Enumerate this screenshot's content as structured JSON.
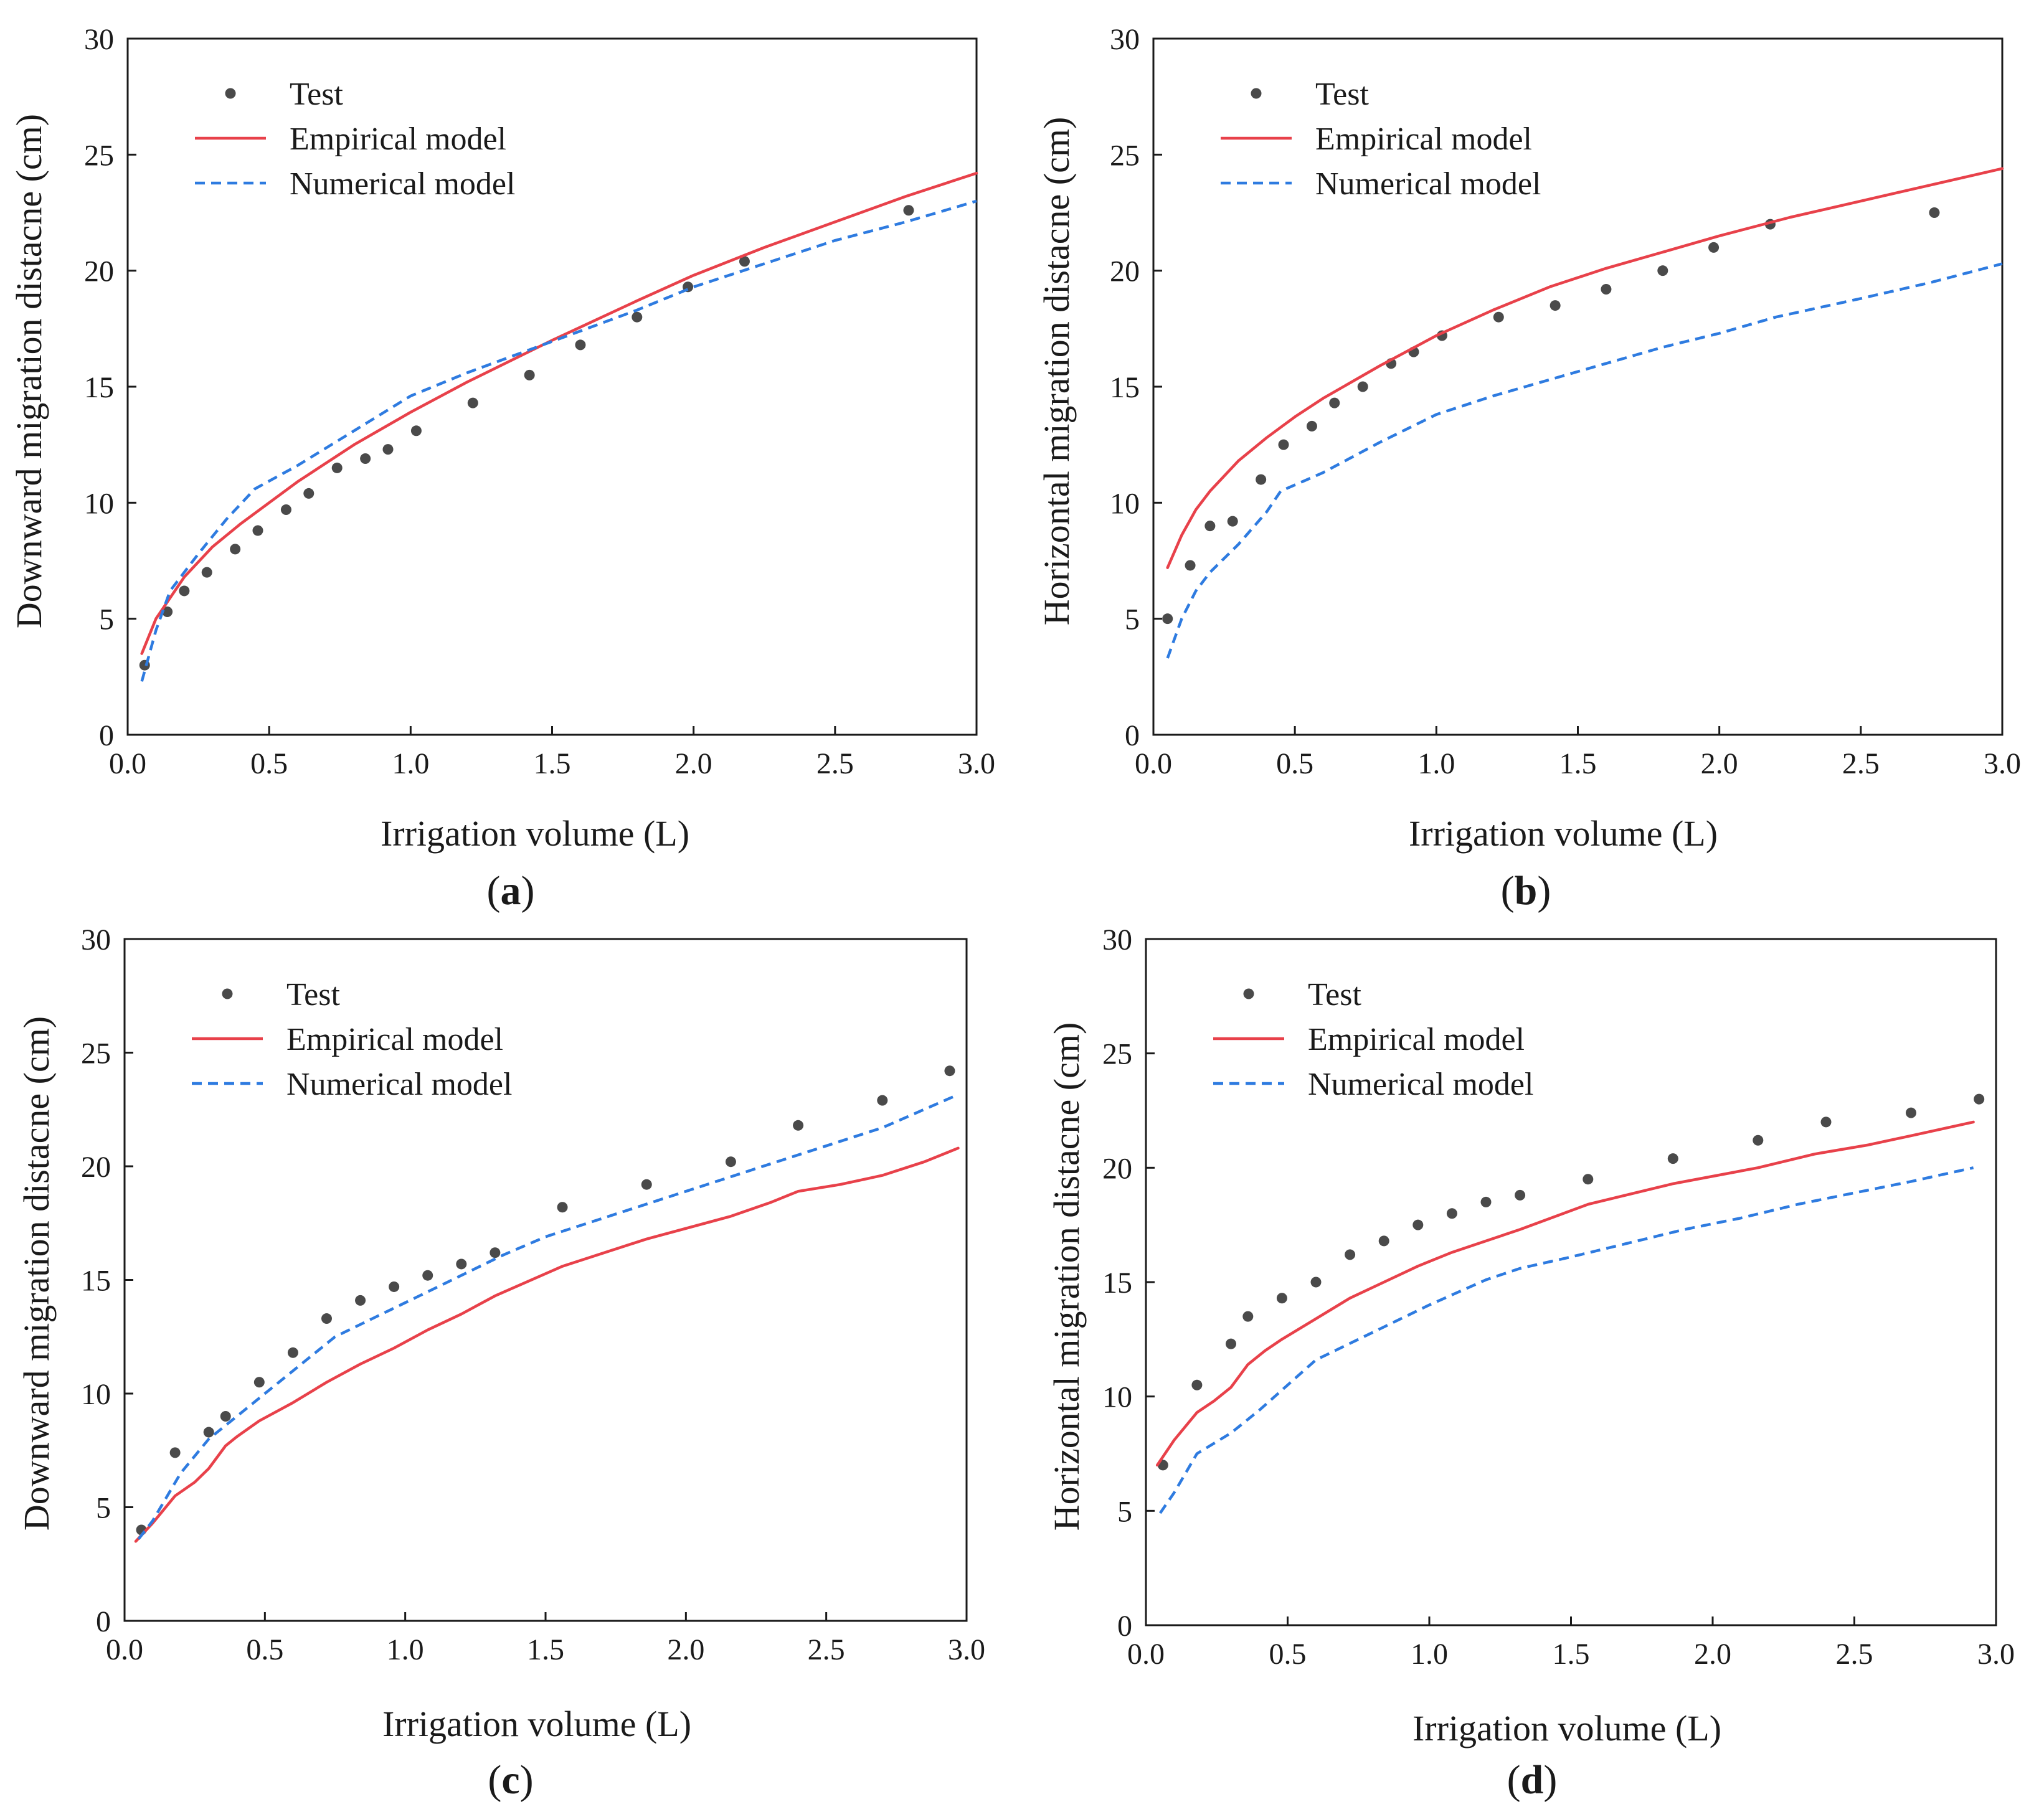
{
  "colors": {
    "test": "#4a4a4a",
    "empirical": "#e8414a",
    "numerical": "#2e7be0",
    "axis": "#1a1a1a"
  },
  "chart_data": [
    {
      "panel": "a",
      "type": "line",
      "xlabel": "Irrigation volume (L)",
      "ylabel": "Downward migration distacne (cm)",
      "xlim": [
        0,
        3.0
      ],
      "ylim": [
        0,
        30
      ],
      "xticks": [
        "0.0",
        "0.5",
        "1.0",
        "1.5",
        "2.0",
        "2.5",
        "3.0"
      ],
      "yticks": [
        "0",
        "5",
        "10",
        "15",
        "20",
        "25",
        "30"
      ],
      "legend": {
        "position": "top-left",
        "entries": [
          "Test",
          "Empirical model",
          "Numerical model"
        ]
      },
      "series": [
        {
          "name": "Test",
          "kind": "scatter",
          "x": [
            0.06,
            0.14,
            0.2,
            0.28,
            0.38,
            0.46,
            0.56,
            0.64,
            0.74,
            0.84,
            0.92,
            1.02,
            1.22,
            1.42,
            1.6,
            1.8,
            1.98,
            2.18,
            2.76
          ],
          "y": [
            3.0,
            5.3,
            6.2,
            7.0,
            8.0,
            8.8,
            9.7,
            10.4,
            11.5,
            11.9,
            12.3,
            13.1,
            14.3,
            15.5,
            16.8,
            18.0,
            19.3,
            20.4,
            22.6
          ]
        },
        {
          "name": "Empirical model",
          "kind": "line",
          "x": [
            0.05,
            0.1,
            0.2,
            0.3,
            0.4,
            0.5,
            0.6,
            0.8,
            1.0,
            1.2,
            1.5,
            1.8,
            2.0,
            2.25,
            2.5,
            2.75,
            3.0
          ],
          "y": [
            3.5,
            5.0,
            6.8,
            8.1,
            9.1,
            10.0,
            10.9,
            12.5,
            13.9,
            15.2,
            17.0,
            18.7,
            19.8,
            21.0,
            22.1,
            23.2,
            24.2
          ]
        },
        {
          "name": "Numerical model",
          "kind": "dashed",
          "x": [
            0.05,
            0.1,
            0.15,
            0.25,
            0.35,
            0.45,
            0.6,
            0.8,
            1.0,
            1.2,
            1.4,
            1.6,
            1.8,
            2.0,
            2.25,
            2.5,
            2.75,
            3.0
          ],
          "y": [
            2.3,
            4.5,
            6.2,
            7.8,
            9.3,
            10.6,
            11.6,
            13.1,
            14.6,
            15.6,
            16.5,
            17.4,
            18.3,
            19.3,
            20.3,
            21.3,
            22.1,
            23.0
          ]
        }
      ],
      "panel_label": "a"
    },
    {
      "panel": "b",
      "type": "line",
      "xlabel": "Irrigation volume (L)",
      "ylabel": "Horizontal migration distacne (cm)",
      "xlim": [
        0,
        3.0
      ],
      "ylim": [
        0,
        30
      ],
      "xticks": [
        "0.0",
        "0.5",
        "1.0",
        "1.5",
        "2.0",
        "2.5",
        "3.0"
      ],
      "yticks": [
        "0",
        "5",
        "10",
        "15",
        "20",
        "25",
        "30"
      ],
      "legend": {
        "position": "top-left",
        "entries": [
          "Test",
          "Empirical model",
          "Numerical model"
        ]
      },
      "series": [
        {
          "name": "Test",
          "kind": "scatter",
          "x": [
            0.05,
            0.13,
            0.2,
            0.28,
            0.38,
            0.46,
            0.56,
            0.64,
            0.74,
            0.84,
            0.92,
            1.02,
            1.22,
            1.42,
            1.6,
            1.8,
            1.98,
            2.18,
            2.76
          ],
          "y": [
            5.0,
            7.3,
            9.0,
            9.2,
            11.0,
            12.5,
            13.3,
            14.3,
            15.0,
            16.0,
            16.5,
            17.2,
            18.0,
            18.5,
            19.2,
            20.0,
            21.0,
            22.0,
            22.5
          ]
        },
        {
          "name": "Empirical model",
          "kind": "line",
          "x": [
            0.05,
            0.1,
            0.15,
            0.2,
            0.3,
            0.4,
            0.5,
            0.6,
            0.8,
            1.0,
            1.2,
            1.4,
            1.6,
            1.8,
            2.0,
            2.25,
            2.5,
            2.75,
            3.0
          ],
          "y": [
            7.2,
            8.6,
            9.7,
            10.5,
            11.8,
            12.8,
            13.7,
            14.5,
            15.9,
            17.2,
            18.3,
            19.3,
            20.1,
            20.8,
            21.5,
            22.3,
            23.0,
            23.7,
            24.4
          ]
        },
        {
          "name": "Numerical model",
          "kind": "dashed",
          "x": [
            0.05,
            0.1,
            0.15,
            0.2,
            0.3,
            0.4,
            0.45,
            0.6,
            0.8,
            1.0,
            1.2,
            1.4,
            1.6,
            1.8,
            2.0,
            2.2,
            2.5,
            2.75,
            3.0
          ],
          "y": [
            3.3,
            5.0,
            6.2,
            7.0,
            8.2,
            9.6,
            10.5,
            11.3,
            12.6,
            13.8,
            14.6,
            15.3,
            16.0,
            16.7,
            17.3,
            18.0,
            18.8,
            19.5,
            20.3
          ]
        }
      ],
      "panel_label": "b"
    },
    {
      "panel": "c",
      "type": "line",
      "xlabel": "Irrigation volume (L)",
      "ylabel": "Downward migration distacne (cm)",
      "xlim": [
        0,
        3.0
      ],
      "ylim": [
        0,
        30
      ],
      "xticks": [
        "0.0",
        "0.5",
        "1.0",
        "1.5",
        "2.0",
        "2.5",
        "3.0"
      ],
      "yticks": [
        "0",
        "5",
        "10",
        "15",
        "20",
        "25",
        "30"
      ],
      "legend": {
        "position": "top-left",
        "entries": [
          "Test",
          "Empirical model",
          "Numerical model"
        ]
      },
      "series": [
        {
          "name": "Test",
          "kind": "scatter",
          "x": [
            0.06,
            0.18,
            0.3,
            0.36,
            0.48,
            0.6,
            0.72,
            0.84,
            0.96,
            1.08,
            1.2,
            1.32,
            1.56,
            1.86,
            2.16,
            2.4,
            2.7,
            2.94
          ],
          "y": [
            4.0,
            7.4,
            8.3,
            9.0,
            10.5,
            11.8,
            13.3,
            14.1,
            14.7,
            15.2,
            15.7,
            16.2,
            18.2,
            19.2,
            20.2,
            21.8,
            22.9,
            24.2
          ]
        },
        {
          "name": "Empirical model",
          "kind": "line",
          "x": [
            0.04,
            0.1,
            0.18,
            0.25,
            0.3,
            0.36,
            0.4,
            0.48,
            0.6,
            0.72,
            0.84,
            0.96,
            1.08,
            1.2,
            1.32,
            1.56,
            1.86,
            2.16,
            2.3,
            2.4,
            2.55,
            2.7,
            2.85,
            2.97
          ],
          "y": [
            3.5,
            4.3,
            5.5,
            6.1,
            6.7,
            7.7,
            8.1,
            8.8,
            9.6,
            10.5,
            11.3,
            12.0,
            12.8,
            13.5,
            14.3,
            15.6,
            16.8,
            17.8,
            18.4,
            18.9,
            19.2,
            19.6,
            20.2,
            20.8
          ]
        },
        {
          "name": "Numerical model",
          "kind": "dashed",
          "x": [
            0.05,
            0.1,
            0.2,
            0.3,
            0.4,
            0.5,
            0.6,
            0.75,
            0.9,
            1.05,
            1.2,
            1.35,
            1.5,
            1.7,
            1.9,
            2.1,
            2.3,
            2.5,
            2.7,
            2.96
          ],
          "y": [
            3.6,
            4.4,
            6.5,
            8.0,
            9.0,
            10.0,
            11.0,
            12.5,
            13.4,
            14.3,
            15.2,
            16.1,
            16.9,
            17.7,
            18.5,
            19.3,
            20.1,
            20.9,
            21.7,
            23.1
          ]
        }
      ],
      "panel_label": "c"
    },
    {
      "panel": "d",
      "type": "line",
      "xlabel": "Irrigation volume (L)",
      "ylabel": "Horizontal migration distacne (cm)",
      "xlim": [
        0,
        3.0
      ],
      "ylim": [
        0,
        30
      ],
      "xticks": [
        "0.0",
        "0.5",
        "1.0",
        "1.5",
        "2.0",
        "2.5",
        "3.0"
      ],
      "yticks": [
        "0",
        "5",
        "10",
        "15",
        "20",
        "25",
        "30"
      ],
      "legend": {
        "position": "top-left",
        "entries": [
          "Test",
          "Empirical model",
          "Numerical model"
        ]
      },
      "series": [
        {
          "name": "Test",
          "kind": "scatter",
          "x": [
            0.06,
            0.18,
            0.3,
            0.36,
            0.48,
            0.6,
            0.72,
            0.84,
            0.96,
            1.08,
            1.2,
            1.32,
            1.56,
            1.86,
            2.16,
            2.4,
            2.7,
            2.94
          ],
          "y": [
            7.0,
            10.5,
            12.3,
            13.5,
            14.3,
            15.0,
            16.2,
            16.8,
            17.5,
            18.0,
            18.5,
            18.8,
            19.5,
            20.4,
            21.2,
            22.0,
            22.4,
            23.0
          ]
        },
        {
          "name": "Empirical model",
          "kind": "line",
          "x": [
            0.04,
            0.1,
            0.18,
            0.24,
            0.3,
            0.36,
            0.42,
            0.48,
            0.6,
            0.72,
            0.84,
            0.96,
            1.08,
            1.2,
            1.32,
            1.56,
            1.86,
            2.16,
            2.36,
            2.55,
            2.7,
            2.92
          ],
          "y": [
            7.0,
            8.1,
            9.3,
            9.8,
            10.4,
            11.4,
            12.0,
            12.5,
            13.4,
            14.3,
            15.0,
            15.7,
            16.3,
            16.8,
            17.3,
            18.4,
            19.3,
            20.0,
            20.6,
            21.0,
            21.4,
            22.0
          ]
        },
        {
          "name": "Numerical model",
          "kind": "dashed",
          "x": [
            0.05,
            0.1,
            0.18,
            0.3,
            0.4,
            0.5,
            0.6,
            0.8,
            1.0,
            1.2,
            1.32,
            1.5,
            1.7,
            1.9,
            2.1,
            2.3,
            2.5,
            2.7,
            2.92
          ],
          "y": [
            4.9,
            5.8,
            7.5,
            8.4,
            9.4,
            10.5,
            11.6,
            12.8,
            14.0,
            15.1,
            15.6,
            16.1,
            16.7,
            17.3,
            17.8,
            18.4,
            18.9,
            19.4,
            20.0
          ]
        }
      ],
      "panel_label": "d"
    }
  ]
}
